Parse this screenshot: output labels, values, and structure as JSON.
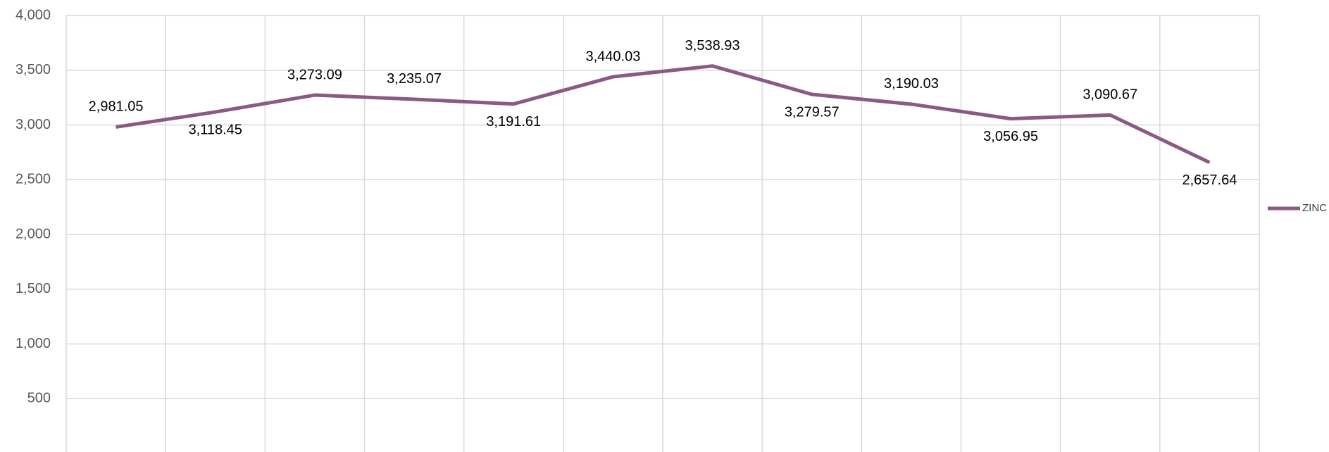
{
  "chart_data": {
    "type": "line",
    "categories": [
      null,
      null,
      null,
      null,
      null,
      null,
      null,
      null,
      null,
      null,
      null,
      null
    ],
    "series": [
      {
        "name": "ZINC",
        "color": "#8b5a83",
        "values": [
          2981.05,
          3118.45,
          3273.09,
          3235.07,
          3191.61,
          3440.03,
          3538.93,
          3279.57,
          3190.03,
          3056.95,
          3090.67,
          2657.64
        ],
        "value_labels": [
          "2,981.05",
          "3,118.45",
          "3,273.09",
          "3,235.07",
          "3,191.61",
          "3,440.03",
          "3,538.93",
          "3,279.57",
          "3,190.03",
          "3,056.95",
          "3,090.67",
          "2,657.64"
        ]
      }
    ],
    "ylim": [
      0,
      4000
    ],
    "yticks": [
      {
        "value": 500,
        "label": "500"
      },
      {
        "value": 1000,
        "label": "1,000"
      },
      {
        "value": 1500,
        "label": "1,500"
      },
      {
        "value": 2000,
        "label": "2,000"
      },
      {
        "value": 2500,
        "label": "2,500"
      },
      {
        "value": 3000,
        "label": "3,000"
      },
      {
        "value": 3500,
        "label": "3,500"
      },
      {
        "value": 4000,
        "label": "4,000"
      }
    ],
    "grid": true
  }
}
